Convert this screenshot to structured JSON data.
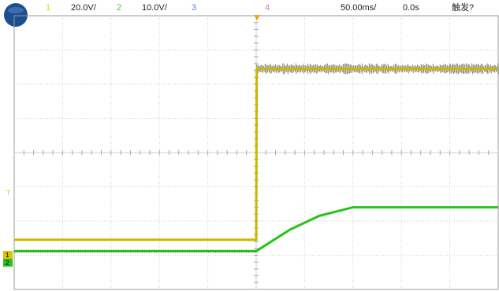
{
  "header": {
    "ch1": {
      "num": "1",
      "scale": "20.0V/",
      "color": "#e6d21c"
    },
    "ch2": {
      "num": "2",
      "scale": "10.0V/",
      "color": "#3bd62a"
    },
    "ch3": {
      "num": "3",
      "color": "#5b7fd6"
    },
    "ch4": {
      "num": "4",
      "color": "#e67aa0"
    },
    "timebase": "50.00ms/",
    "delay": "0.0s",
    "trigger_status": "触发?"
  },
  "markers": {
    "left_ch1": "1",
    "left_ch2": "2",
    "left_trigger": "T"
  },
  "colors": {
    "grid": "#cfcfcf",
    "ch1_trace": "#c9b800",
    "ch1_noise": "#3a3a2a",
    "ch2_trace": "#27c21b",
    "trigger_marker": "#f0a21c",
    "logo": "#1d4f8f"
  },
  "chart_data": {
    "type": "line",
    "x_divisions": 10,
    "time_per_div": "50.00ms/",
    "series": [
      {
        "name": "1",
        "volts_per_div": 20.0,
        "points_div": [
          [
            0,
            -2.55
          ],
          [
            5.0,
            -2.55
          ],
          [
            5.01,
            2.45
          ],
          [
            10,
            2.45
          ]
        ]
      },
      {
        "name": "2",
        "volts_per_div": 10.0,
        "points_div": [
          [
            0,
            -2.88
          ],
          [
            5.0,
            -2.88
          ],
          [
            5.7,
            -2.25
          ],
          [
            6.3,
            -1.85
          ],
          [
            7.0,
            -1.6
          ],
          [
            10,
            -1.6
          ]
        ]
      }
    ]
  }
}
